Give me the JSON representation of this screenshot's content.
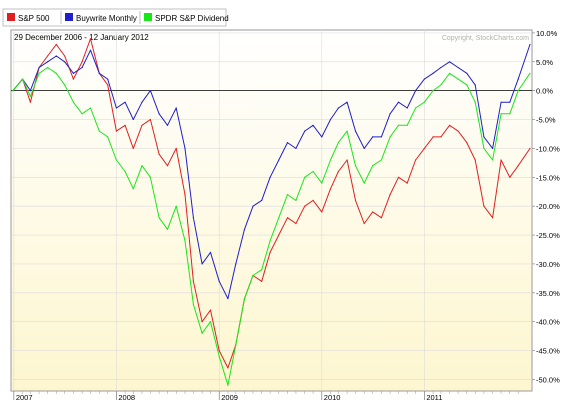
{
  "header": {
    "date_range": "29 December 2006 - 12 January 2012",
    "copyright": "Copyright, StockCharts.com"
  },
  "chart_data": {
    "type": "line",
    "x": [
      "2006-12-29",
      "2007-02-01",
      "2007-03-01",
      "2007-04-01",
      "2007-05-01",
      "2007-06-01",
      "2007-07-01",
      "2007-08-01",
      "2007-09-01",
      "2007-10-01",
      "2007-11-01",
      "2007-12-01",
      "2008-01-01",
      "2008-02-01",
      "2008-03-01",
      "2008-04-01",
      "2008-05-01",
      "2008-06-01",
      "2008-07-01",
      "2008-08-01",
      "2008-09-01",
      "2008-10-01",
      "2008-11-01",
      "2008-12-01",
      "2009-01-01",
      "2009-02-01",
      "2009-03-01",
      "2009-04-01",
      "2009-05-01",
      "2009-06-01",
      "2009-07-01",
      "2009-08-01",
      "2009-09-01",
      "2009-10-01",
      "2009-11-01",
      "2009-12-01",
      "2010-01-01",
      "2010-02-01",
      "2010-03-01",
      "2010-04-01",
      "2010-05-01",
      "2010-06-01",
      "2010-07-01",
      "2010-08-01",
      "2010-09-01",
      "2010-10-01",
      "2010-11-01",
      "2010-12-01",
      "2011-01-01",
      "2011-02-01",
      "2011-03-01",
      "2011-04-01",
      "2011-05-01",
      "2011-06-01",
      "2011-07-01",
      "2011-08-01",
      "2011-09-01",
      "2011-10-01",
      "2011-11-01",
      "2011-12-01",
      "2012-01-12"
    ],
    "series": [
      {
        "name": "S&P 500",
        "color": "#e02020",
        "values": [
          0,
          2,
          -2,
          4,
          6,
          8,
          6,
          2,
          5,
          9,
          3,
          1,
          -7,
          -6,
          -10,
          -6,
          -5,
          -11,
          -13,
          -10,
          -18,
          -33,
          -40,
          -38,
          -45,
          -48,
          -44,
          -36,
          -32,
          -33,
          -28,
          -25,
          -22,
          -23,
          -20,
          -19,
          -21,
          -17,
          -14,
          -12,
          -19,
          -23,
          -21,
          -22,
          -18,
          -15,
          -16,
          -12,
          -10,
          -8,
          -8,
          -6,
          -7,
          -9,
          -12,
          -20,
          -22,
          -12,
          -15,
          -13,
          -10
        ]
      },
      {
        "name": "Buywrite Monthly",
        "color": "#1f1fcc",
        "values": [
          0,
          2,
          0,
          4,
          5,
          6,
          5,
          3,
          4,
          7,
          3,
          2,
          -3,
          -2,
          -5,
          -2,
          0,
          -4,
          -6,
          -3,
          -10,
          -22,
          -30,
          -28,
          -33,
          -36,
          -30,
          -24,
          -20,
          -19,
          -15,
          -12,
          -9,
          -10,
          -7,
          -6,
          -8,
          -5,
          -3,
          -2,
          -7,
          -10,
          -8,
          -8,
          -4,
          -2,
          -3,
          0,
          2,
          3,
          4,
          5,
          4,
          3,
          1,
          -8,
          -10,
          -2,
          -2,
          2,
          8
        ]
      },
      {
        "name": "SPDR S&P Dividend",
        "color": "#19e619",
        "values": [
          0,
          2,
          -1,
          3,
          4,
          3,
          1,
          -2,
          -4,
          -3,
          -7,
          -8,
          -12,
          -14,
          -17,
          -13,
          -15,
          -22,
          -24,
          -20,
          -26,
          -37,
          -42,
          -40,
          -46,
          -51,
          -44,
          -36,
          -32,
          -31,
          -26,
          -22,
          -18,
          -19,
          -15,
          -14,
          -16,
          -12,
          -9,
          -7,
          -13,
          -16,
          -13,
          -12,
          -8,
          -6,
          -6,
          -3,
          -2,
          0,
          1,
          3,
          2,
          1,
          -2,
          -10,
          -12,
          -4,
          -4,
          0,
          3
        ]
      }
    ],
    "x_ticks": [
      "2007",
      "2008",
      "2009",
      "2010",
      "2011"
    ],
    "y_ticks": [
      "10.0%",
      "5.0%",
      "0.0%",
      "-5.0%",
      "-10.0%",
      "-15.0%",
      "-20.0%",
      "-25.0%",
      "-30.0%",
      "-35.0%",
      "-40.0%",
      "-45.0%",
      "-50.0%"
    ],
    "ylim": [
      -52,
      10.5
    ],
    "xlabel": "",
    "ylabel": "",
    "grid": true,
    "legend_position": "top-left",
    "reference_line": 0,
    "background_gradient": [
      "#ffffff",
      "#fdf6cf"
    ]
  }
}
